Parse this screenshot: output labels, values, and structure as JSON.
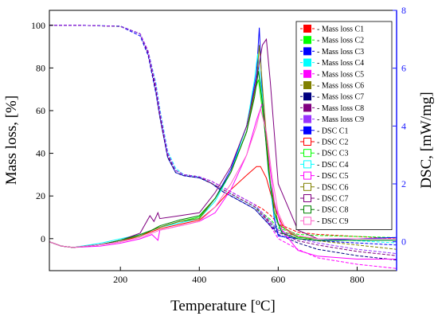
{
  "chart_data": {
    "type": "line",
    "xlabel": "Temperature [ºC]",
    "ylabel_left": "Mass loss, [%]",
    "ylabel_right": "DSC, [mW/mg]",
    "xlim": [
      20,
      900
    ],
    "ylim_left": [
      -15,
      107
    ],
    "ylim_right": [
      -1.0,
      8
    ],
    "xticks": [
      200,
      400,
      600,
      800
    ],
    "yticks_left": [
      0,
      20,
      40,
      60,
      80,
      100
    ],
    "yticks_right": [
      0,
      2,
      4,
      6,
      8
    ],
    "legend_position": "top-right",
    "colors": {
      "axis_left": "#000000",
      "axis_right": "#1a1aff"
    },
    "series": [
      {
        "name": "Mass loss C1",
        "axis": "left",
        "color": "#ff0000",
        "marker": "filled-square",
        "x": [
          20,
          100,
          200,
          250,
          270,
          290,
          300,
          320,
          340,
          360,
          400,
          430,
          460,
          500,
          540,
          560,
          580,
          600,
          650,
          700,
          800,
          900
        ],
        "y": [
          100,
          100,
          99.5,
          96,
          88,
          72,
          60,
          40,
          32,
          30,
          29,
          27,
          24,
          20,
          16,
          14,
          11,
          7,
          3,
          2,
          1,
          0
        ]
      },
      {
        "name": "Mass loss C2",
        "axis": "left",
        "color": "#00ff00",
        "marker": "filled-square",
        "x": [
          20,
          100,
          200,
          250,
          270,
          290,
          300,
          320,
          340,
          360,
          400,
          430,
          460,
          500,
          540,
          560,
          580,
          600,
          650,
          700,
          800,
          900
        ],
        "y": [
          100,
          100,
          99.4,
          96,
          87,
          70,
          58,
          39,
          32,
          30,
          29,
          26,
          23,
          19,
          15,
          12,
          9,
          5,
          2,
          1.5,
          1,
          0.5
        ]
      },
      {
        "name": "Mass loss C3",
        "axis": "left",
        "color": "#0000ff",
        "marker": "filled-square",
        "x": [
          20,
          100,
          200,
          250,
          270,
          290,
          300,
          320,
          340,
          360,
          400,
          430,
          460,
          500,
          540,
          560,
          580,
          600,
          650,
          700,
          800,
          900
        ],
        "y": [
          100,
          100,
          99.5,
          95,
          86,
          68,
          57,
          38,
          31,
          29.5,
          28.5,
          26,
          22,
          18,
          14,
          10,
          6,
          3,
          0,
          -1,
          -2,
          -3
        ]
      },
      {
        "name": "Mass loss C4",
        "axis": "left",
        "color": "#00ffff",
        "marker": "filled-square",
        "x": [
          20,
          100,
          200,
          250,
          270,
          290,
          300,
          320,
          340,
          360,
          400,
          430,
          460,
          500,
          540,
          560,
          580,
          600,
          650,
          700,
          800,
          900
        ],
        "y": [
          100,
          100,
          99.6,
          96,
          88,
          73,
          61,
          41,
          33,
          30,
          29,
          26,
          23,
          19,
          15,
          11,
          7,
          4,
          1,
          0,
          -1,
          -2
        ]
      },
      {
        "name": "Mass loss C5",
        "axis": "left",
        "color": "#ff00ff",
        "marker": "filled-square",
        "x": [
          20,
          100,
          200,
          250,
          270,
          290,
          300,
          320,
          340,
          360,
          400,
          430,
          460,
          500,
          540,
          560,
          580,
          600,
          650,
          700,
          800,
          900
        ],
        "y": [
          100,
          100,
          99.5,
          96,
          88,
          71,
          59,
          40,
          32,
          30,
          29,
          27,
          24,
          20,
          16,
          12,
          6,
          0,
          -5,
          -9,
          -12,
          -14
        ]
      },
      {
        "name": "Mass loss C6",
        "axis": "left",
        "color": "#808000",
        "marker": "filled-square",
        "x": [
          20,
          100,
          200,
          250,
          270,
          290,
          300,
          320,
          340,
          360,
          400,
          430,
          460,
          500,
          540,
          560,
          580,
          600,
          650,
          700,
          800,
          900
        ],
        "y": [
          100,
          100,
          99.5,
          96,
          87,
          70,
          59,
          39,
          32,
          30,
          29,
          26,
          23,
          19,
          15,
          11,
          8,
          4,
          1,
          -1,
          -3,
          -5
        ]
      },
      {
        "name": "Mass loss C7",
        "axis": "left",
        "color": "#000080",
        "marker": "filled-square",
        "x": [
          20,
          100,
          200,
          250,
          270,
          290,
          300,
          320,
          340,
          360,
          400,
          430,
          460,
          500,
          540,
          560,
          580,
          600,
          650,
          700,
          800,
          900
        ],
        "y": [
          100,
          100,
          99.6,
          96,
          87,
          69,
          57,
          38,
          31,
          29.5,
          28.5,
          26,
          22,
          18,
          14,
          10,
          6,
          2,
          -2,
          -5,
          -8,
          -10
        ]
      },
      {
        "name": "Mass loss C8",
        "axis": "left",
        "color": "#800080",
        "marker": "filled-square",
        "x": [
          20,
          100,
          200,
          250,
          270,
          290,
          300,
          320,
          340,
          360,
          400,
          430,
          460,
          500,
          540,
          560,
          580,
          600,
          650,
          700,
          800,
          900
        ],
        "y": [
          100,
          100,
          99.5,
          96,
          87,
          70,
          58,
          39,
          32,
          30,
          29,
          26,
          23,
          19,
          15,
          11,
          7,
          3,
          -1,
          -3,
          -6,
          -8
        ]
      },
      {
        "name": "Mass loss C9",
        "axis": "left",
        "color": "#9933ff",
        "marker": "filled-square",
        "x": [
          20,
          100,
          200,
          250,
          270,
          290,
          300,
          320,
          340,
          360,
          400,
          430,
          460,
          500,
          540,
          560,
          580,
          600,
          650,
          700,
          800,
          900
        ],
        "y": [
          100,
          100,
          99.5,
          96,
          88,
          72,
          60,
          40,
          32,
          30,
          29,
          27,
          24,
          20,
          16,
          12,
          8,
          4,
          0,
          -2,
          -5,
          -7
        ]
      },
      {
        "name": "DSC C1",
        "axis": "right",
        "color": "#0000ff",
        "marker": "filled-square",
        "x": [
          20,
          50,
          80,
          150,
          200,
          250,
          280,
          300,
          350,
          400,
          440,
          480,
          520,
          545,
          552,
          560,
          575,
          590,
          600,
          650,
          700,
          800,
          900
        ],
        "y": [
          0,
          -0.15,
          -0.2,
          -0.1,
          0.05,
          0.2,
          0.4,
          0.5,
          0.7,
          0.8,
          1.5,
          2.5,
          4.0,
          5.8,
          7.4,
          5.0,
          2.5,
          0.8,
          0.2,
          0.1,
          0.05,
          0.1,
          0.15
        ]
      },
      {
        "name": "DSC C2",
        "axis": "right",
        "color": "#ff0000",
        "marker": "open-square",
        "x": [
          20,
          50,
          80,
          150,
          200,
          250,
          280,
          300,
          350,
          400,
          440,
          480,
          520,
          545,
          555,
          570,
          590,
          610,
          630,
          650,
          700,
          800,
          900
        ],
        "y": [
          0,
          -0.15,
          -0.2,
          -0.1,
          0.0,
          0.2,
          0.35,
          0.45,
          0.6,
          0.75,
          1.2,
          1.8,
          2.3,
          2.6,
          2.6,
          2.2,
          1.2,
          0.6,
          0.3,
          0.15,
          0.1,
          0.1,
          0.1
        ]
      },
      {
        "name": "DSC C3",
        "axis": "right",
        "color": "#00ff00",
        "marker": "open-square",
        "x": [
          20,
          50,
          80,
          150,
          200,
          250,
          280,
          300,
          350,
          400,
          440,
          480,
          520,
          540,
          550,
          565,
          580,
          600,
          650,
          700,
          800,
          900
        ],
        "y": [
          0,
          -0.15,
          -0.2,
          -0.1,
          0.05,
          0.2,
          0.4,
          0.5,
          0.7,
          0.85,
          1.5,
          2.4,
          3.8,
          5.2,
          5.6,
          4.0,
          2.0,
          0.6,
          0.15,
          0.1,
          0.1,
          0.1
        ]
      },
      {
        "name": "DSC C4",
        "axis": "right",
        "color": "#00ffff",
        "marker": "open-square",
        "x": [
          20,
          50,
          80,
          150,
          200,
          250,
          280,
          300,
          350,
          400,
          440,
          480,
          520,
          540,
          548,
          560,
          575,
          590,
          610,
          650,
          700,
          800,
          900
        ],
        "y": [
          0,
          -0.15,
          -0.2,
          -0.05,
          0.1,
          0.25,
          0.4,
          0.5,
          0.65,
          0.8,
          1.4,
          2.4,
          4.0,
          5.6,
          6.5,
          5.0,
          2.4,
          0.9,
          0.3,
          0.1,
          0.05,
          0.05,
          0.05
        ]
      },
      {
        "name": "DSC C5",
        "axis": "right",
        "color": "#ff00ff",
        "marker": "open-square",
        "x": [
          20,
          50,
          80,
          150,
          200,
          250,
          280,
          295,
          300,
          350,
          400,
          440,
          480,
          520,
          545,
          560,
          575,
          590,
          610,
          650,
          700,
          800,
          900
        ],
        "y": [
          0,
          -0.15,
          -0.2,
          -0.15,
          -0.05,
          0.1,
          0.25,
          0.05,
          0.4,
          0.55,
          0.7,
          1.0,
          1.8,
          3.0,
          4.2,
          4.8,
          3.0,
          1.4,
          0.4,
          -0.3,
          -0.5,
          -0.6,
          -0.6
        ]
      },
      {
        "name": "DSC C6",
        "axis": "right",
        "color": "#808000",
        "marker": "open-square",
        "x": [
          20,
          50,
          80,
          150,
          200,
          250,
          280,
          300,
          350,
          400,
          440,
          480,
          520,
          545,
          552,
          565,
          580,
          600,
          650,
          700,
          800,
          900
        ],
        "y": [
          0,
          -0.15,
          -0.2,
          -0.1,
          0.05,
          0.2,
          0.4,
          0.5,
          0.7,
          0.8,
          1.5,
          2.4,
          3.8,
          5.5,
          6.8,
          4.5,
          2.0,
          0.6,
          0.2,
          0.1,
          0.1,
          0.1
        ]
      },
      {
        "name": "DSC C7",
        "axis": "right",
        "color": "#800080",
        "marker": "open-square",
        "x": [
          20,
          50,
          80,
          150,
          200,
          250,
          275,
          285,
          295,
          300,
          350,
          400,
          440,
          480,
          520,
          545,
          560,
          570,
          580,
          600,
          650,
          700,
          800,
          900
        ],
        "y": [
          0,
          -0.15,
          -0.2,
          -0.1,
          0.05,
          0.3,
          0.9,
          0.7,
          1.0,
          0.8,
          0.9,
          1.0,
          1.7,
          2.6,
          4.0,
          5.6,
          6.8,
          7.0,
          5.5,
          2.0,
          0.4,
          0.1,
          0.1,
          0.1
        ]
      },
      {
        "name": "DSC C8",
        "axis": "right",
        "color": "#008000",
        "marker": "open-square",
        "x": [
          20,
          50,
          80,
          150,
          200,
          250,
          280,
          300,
          350,
          400,
          440,
          480,
          520,
          540,
          550,
          560,
          575,
          590,
          610,
          650,
          700,
          800,
          900
        ],
        "y": [
          0,
          -0.15,
          -0.2,
          -0.1,
          0.05,
          0.25,
          0.4,
          0.55,
          0.75,
          0.9,
          1.5,
          2.4,
          3.8,
          5.0,
          5.9,
          4.8,
          2.5,
          1.0,
          0.3,
          0.1,
          0.05,
          0.05,
          0.05
        ]
      },
      {
        "name": "DSC C9",
        "axis": "right",
        "color": "#ff66cc",
        "marker": "open-square",
        "x": [
          20,
          50,
          80,
          150,
          200,
          250,
          280,
          300,
          350,
          400,
          440,
          480,
          520,
          545,
          555,
          570,
          585,
          600,
          620,
          650,
          700,
          800,
          900
        ],
        "y": [
          0,
          -0.15,
          -0.2,
          -0.1,
          0.0,
          0.15,
          0.3,
          0.4,
          0.55,
          0.7,
          1.2,
          2.0,
          3.0,
          4.0,
          4.6,
          3.8,
          2.2,
          1.0,
          0.4,
          0.2,
          0.1,
          0.1,
          0.1
        ]
      }
    ]
  }
}
